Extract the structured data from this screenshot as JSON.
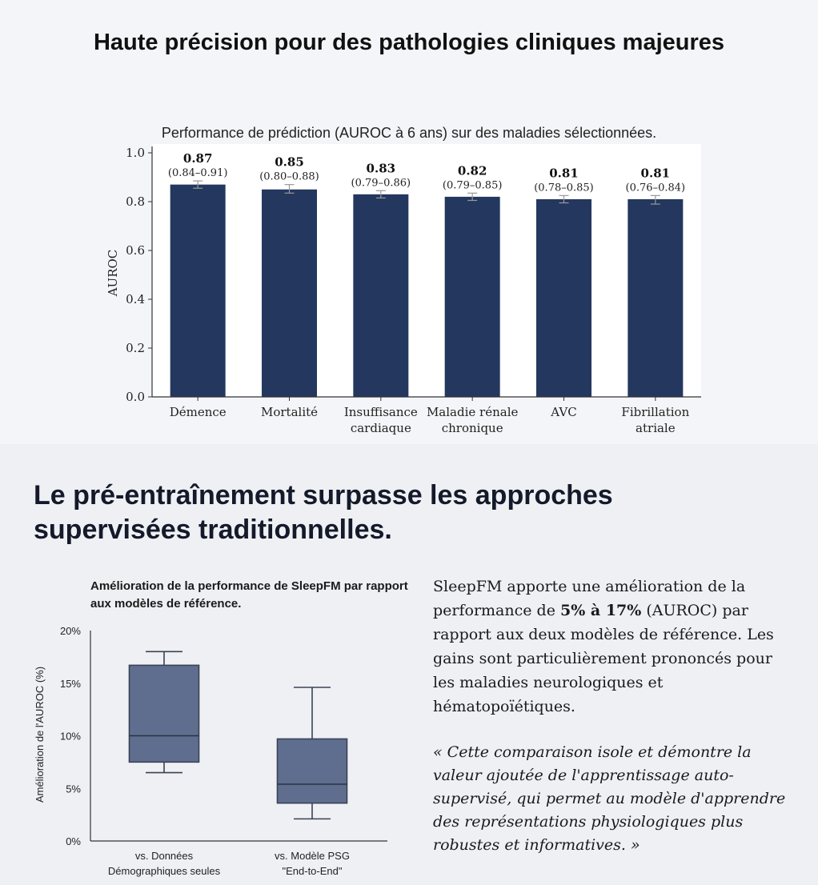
{
  "header": {
    "title": "Haute précision pour des pathologies cliniques majeures",
    "subtitle": "Performance de prédiction (AUROC à 6 ans) sur des maladies sélectionnées."
  },
  "section2": {
    "title": "Le pré-entraînement surpasse les approches supervisées traditionnelles.",
    "paragraph_pre": "SleepFM apporte une amélioration de la performance de ",
    "paragraph_bold": "5% à 17%",
    "paragraph_post": " (AUROC) par rapport aux deux modèles de référence. Les gains sont particulièrement prononcés pour les maladies neurologiques et hématopoïétiques.",
    "quote": "« Cette comparaison isole et démontre la valeur ajoutée de l'apprentissage auto-supervisé, qui permet au modèle d'apprendre des représentations physiologiques plus robustes et informatives. »"
  },
  "chart_data": [
    {
      "type": "bar",
      "ylabel": "AUROC",
      "ylim": [
        0,
        1.0
      ],
      "yticks": [
        "0.0",
        "0.2",
        "0.4",
        "0.6",
        "0.8",
        "1.0"
      ],
      "yticks_values": [
        0,
        0.2,
        0.4,
        0.6,
        0.8,
        1.0
      ],
      "color": "#24375e",
      "categories": [
        [
          "Démence"
        ],
        [
          "Mortalité"
        ],
        [
          "Insuffisance",
          "cardiaque"
        ],
        [
          "Maladie rénale",
          "chronique"
        ],
        [
          "AVC"
        ],
        [
          "Fibrillation",
          "atriale"
        ]
      ],
      "values": [
        0.87,
        0.85,
        0.83,
        0.82,
        0.81,
        0.81
      ],
      "value_labels": [
        "0.87",
        "0.85",
        "0.83",
        "0.82",
        "0.81",
        "0.81"
      ],
      "ci_labels": [
        "(0.84–0.91)",
        "(0.80–0.88)",
        "(0.79–0.86)",
        "(0.79–0.85)",
        "(0.78–0.85)",
        "(0.76–0.84)"
      ],
      "err_low": [
        0.855,
        0.835,
        0.815,
        0.805,
        0.795,
        0.79
      ],
      "err_high": [
        0.885,
        0.87,
        0.845,
        0.835,
        0.825,
        0.825
      ]
    },
    {
      "type": "box",
      "title": "Amélioration de la performance de SleepFM par rapport aux modèles de référence.",
      "ylabel": "Amélioration de l'AUROC (%)",
      "ylim": [
        0,
        20
      ],
      "yticks": [
        "0%",
        "5%",
        "10%",
        "15%",
        "20%"
      ],
      "yticks_values": [
        0,
        5,
        10,
        15,
        20
      ],
      "color": "#5f6e8e",
      "categories": [
        [
          "vs. Données",
          "Démographiques seules"
        ],
        [
          "vs. Modèle PSG",
          "\"End-to-End\""
        ]
      ],
      "boxes": [
        {
          "whisker_low": 6.5,
          "q1": 7.5,
          "median": 10.0,
          "q3": 16.7,
          "whisker_high": 18.0
        },
        {
          "whisker_low": 2.1,
          "q1": 3.6,
          "median": 5.4,
          "q3": 9.7,
          "whisker_high": 14.6
        }
      ]
    }
  ]
}
